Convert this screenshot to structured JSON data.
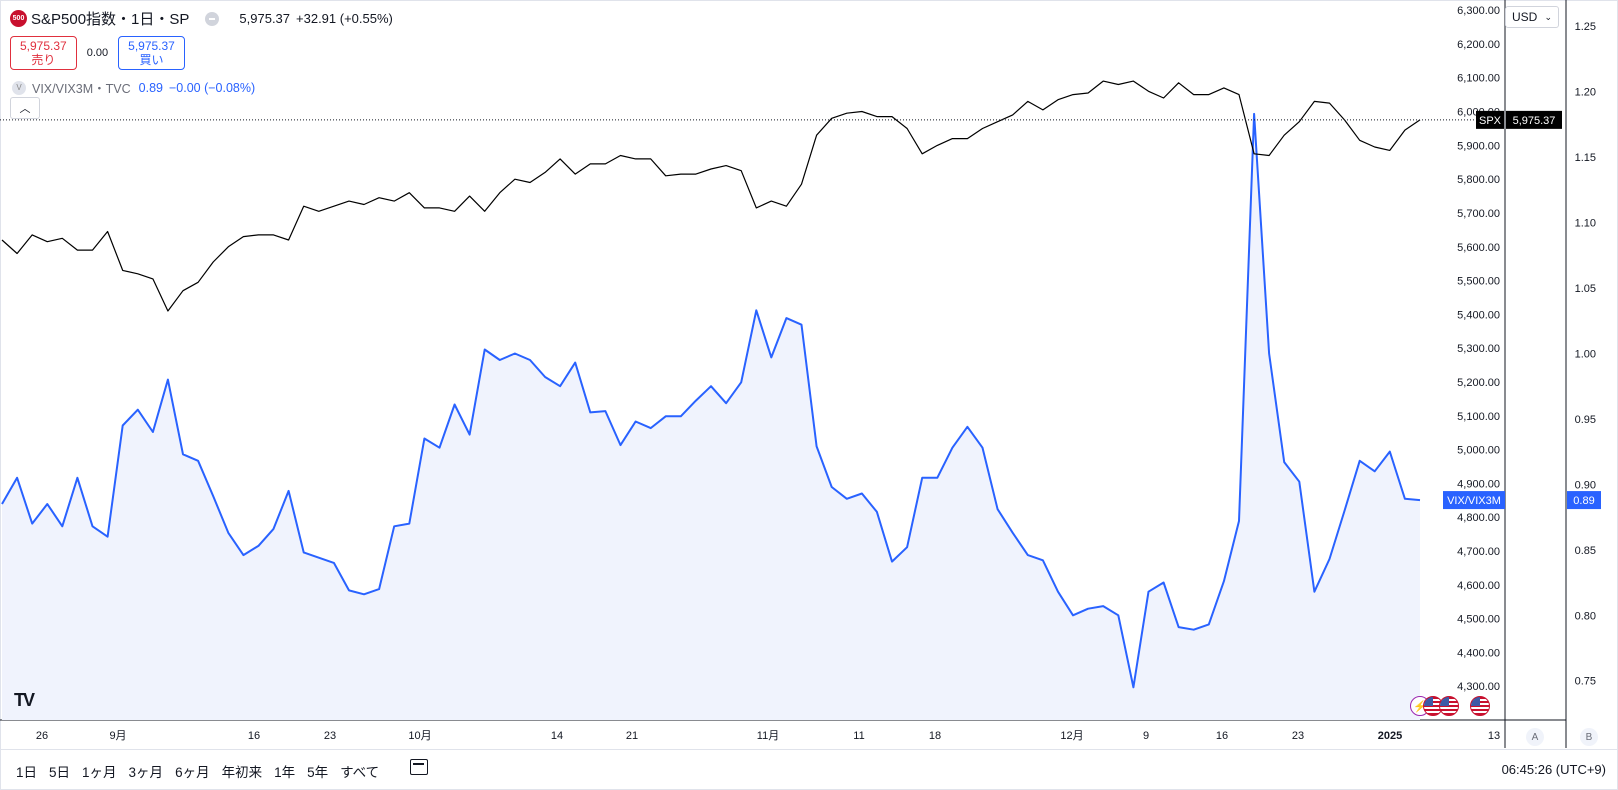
{
  "header": {
    "logo_text": "500",
    "symbol_title": "S&P500指数・1日・SP",
    "last_price": "5,975.37",
    "change": "+32.91 (+0.55%)"
  },
  "trade": {
    "sell_price": "5,975.37",
    "sell_label": "売り",
    "spread": "0.00",
    "buy_price": "5,975.37",
    "buy_label": "買い"
  },
  "indicator": {
    "icon_letter": "V",
    "name": "VIX/VIX3M・TVC",
    "value": "0.89",
    "change": "−0.00 (−0.08%)"
  },
  "currency": "USD",
  "time_ranges": [
    "1日",
    "5日",
    "1ヶ月",
    "3ヶ月",
    "6ヶ月",
    "年初来",
    "1年",
    "5年",
    "すべて"
  ],
  "clock": "06:45:26 (UTC+9)",
  "axis_buttons": {
    "left": "A",
    "right": "B"
  },
  "chart_data": {
    "type": "line",
    "x_ticks": [
      "26",
      "9月",
      "16",
      "23",
      "10月",
      "14",
      "21",
      "11月",
      "11",
      "18",
      "12月",
      "9",
      "16",
      "23",
      "2025",
      "13"
    ],
    "spx_axis": {
      "ticks": [
        "6,300.00",
        "6,200.00",
        "6,100.00",
        "6,000.00",
        "5,900.00",
        "5,800.00",
        "5,700.00",
        "5,600.00",
        "5,500.00",
        "5,400.00",
        "5,300.00",
        "5,200.00",
        "5,100.00",
        "5,000.00",
        "4,900.00",
        "4,800.00",
        "4,700.00",
        "4,600.00",
        "4,500.00",
        "4,400.00",
        "4,300.00"
      ],
      "range": [
        4200,
        6330
      ]
    },
    "vix_axis": {
      "ticks": [
        "1.25",
        "1.20",
        "1.15",
        "1.10",
        "1.05",
        "1.00",
        "0.95",
        "0.90",
        "0.85",
        "0.80",
        "0.75"
      ],
      "range": [
        0.72,
        1.27
      ]
    },
    "series": [
      {
        "name": "SPX",
        "color": "#000000",
        "label": "SPX",
        "last_label": "5,975.37",
        "values": [
          5620,
          5580,
          5635,
          5615,
          5625,
          5590,
          5590,
          5645,
          5530,
          5520,
          5505,
          5410,
          5470,
          5495,
          5555,
          5600,
          5630,
          5635,
          5635,
          5620,
          5720,
          5705,
          5720,
          5735,
          5725,
          5745,
          5735,
          5760,
          5715,
          5715,
          5705,
          5750,
          5705,
          5760,
          5800,
          5790,
          5820,
          5860,
          5815,
          5845,
          5845,
          5870,
          5860,
          5860,
          5810,
          5815,
          5815,
          5830,
          5840,
          5825,
          5715,
          5735,
          5720,
          5785,
          5930,
          5980,
          5995,
          6000,
          5985,
          5985,
          5950,
          5875,
          5900,
          5920,
          5920,
          5950,
          5970,
          5990,
          6030,
          6005,
          6035,
          6050,
          6055,
          6090,
          6080,
          6090,
          6060,
          6040,
          6085,
          6050,
          6050,
          6070,
          6050,
          5875,
          5870,
          5930,
          5970,
          6030,
          6025,
          5975,
          5915,
          5895,
          5885,
          5945,
          5975.37
        ]
      },
      {
        "name": "VIX/VIX3M",
        "color": "#2962ff",
        "label": "VIX/VIX3M",
        "last_label": "0.89",
        "values": [
          0.885,
          0.905,
          0.87,
          0.885,
          0.868,
          0.905,
          0.868,
          0.86,
          0.945,
          0.957,
          0.94,
          0.98,
          0.923,
          0.918,
          0.891,
          0.863,
          0.846,
          0.853,
          0.866,
          0.895,
          0.848,
          0.844,
          0.84,
          0.819,
          0.816,
          0.82,
          0.868,
          0.87,
          0.935,
          0.928,
          0.961,
          0.938,
          1.003,
          0.995,
          1.0,
          0.995,
          0.982,
          0.975,
          0.993,
          0.955,
          0.956,
          0.93,
          0.948,
          0.943,
          0.952,
          0.952,
          0.964,
          0.975,
          0.962,
          0.978,
          1.033,
          0.997,
          1.027,
          1.022,
          0.929,
          0.898,
          0.889,
          0.893,
          0.879,
          0.841,
          0.852,
          0.905,
          0.905,
          0.928,
          0.944,
          0.928,
          0.881,
          0.863,
          0.846,
          0.842,
          0.818,
          0.8,
          0.805,
          0.807,
          0.8,
          0.745,
          0.818,
          0.825,
          0.791,
          0.789,
          0.793,
          0.826,
          0.872,
          1.183,
          1.0,
          0.917,
          0.902,
          0.818,
          0.843,
          0.88,
          0.918,
          0.91,
          0.925,
          0.889,
          0.888
        ]
      }
    ]
  }
}
